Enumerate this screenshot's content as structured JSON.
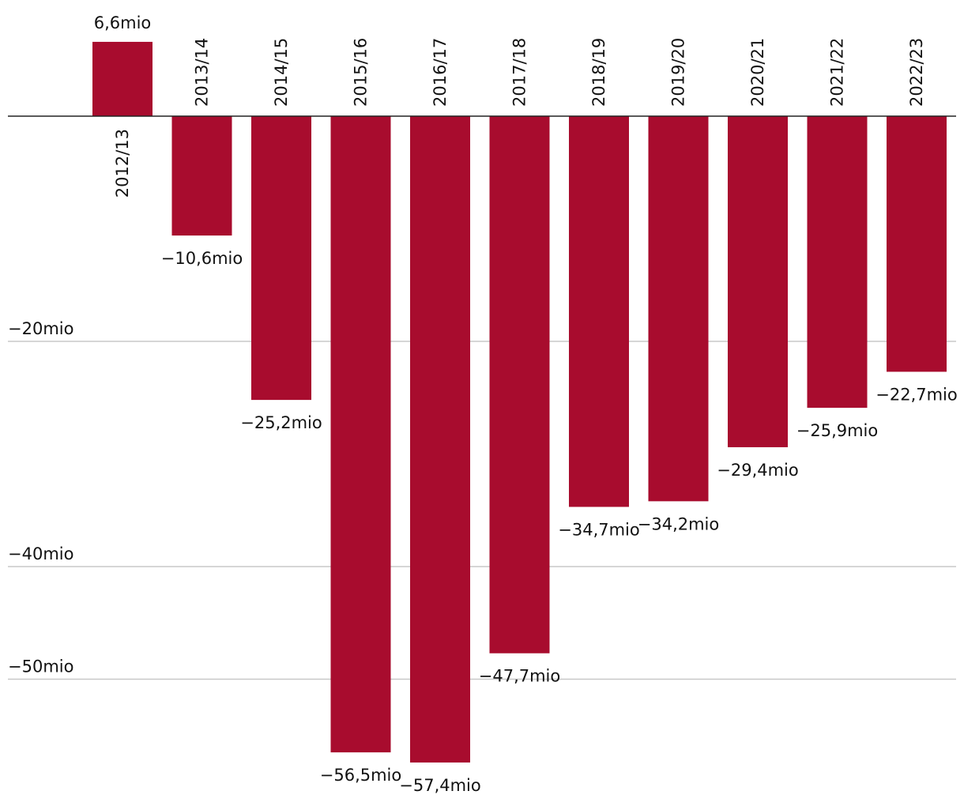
{
  "chart_data": {
    "type": "bar",
    "categories": [
      "2012/13",
      "2013/14",
      "2014/15",
      "2015/16",
      "2016/17",
      "2017/18",
      "2018/19",
      "2019/20",
      "2020/21",
      "2021/22",
      "2022/23"
    ],
    "values": [
      6.6,
      -10.6,
      -25.2,
      -56.5,
      -57.4,
      -47.7,
      -34.7,
      -34.2,
      -29.4,
      -25.9,
      -22.7
    ],
    "value_labels": [
      "6,6mio",
      "−10,6mio",
      "−25,2mio",
      "−56,5mio",
      "−57,4mio",
      "−47,7mio",
      "−34,7mio",
      "−34,2mio",
      "−29,4mio",
      "−25,9mio",
      "−22,7mio"
    ],
    "ylim": [
      -58,
      8
    ],
    "yticks": [
      -20,
      -40,
      -50
    ],
    "ytick_labels": [
      "−20mio",
      "−40mio",
      "−50mio"
    ],
    "bar_color": "#a80c2e",
    "grid": true,
    "title": "",
    "xlabel": "",
    "ylabel": ""
  }
}
